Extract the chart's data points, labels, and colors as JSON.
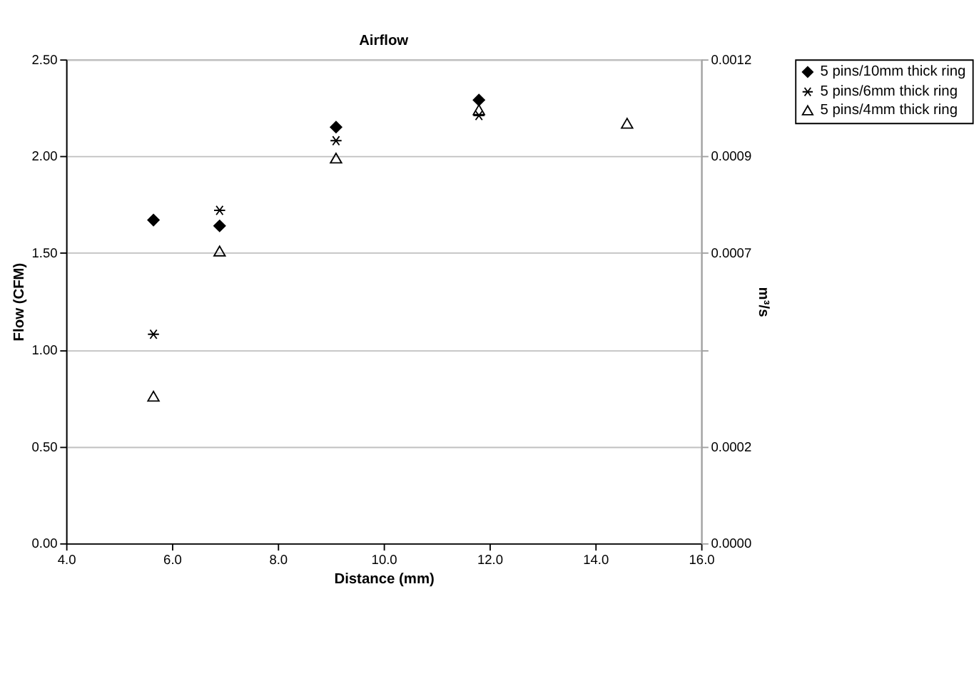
{
  "chart_data": {
    "type": "scatter",
    "title": "Airflow",
    "xlabel": "Distance (mm)",
    "ylabel": "Flow (CFM)",
    "y2label": "m³/s",
    "xlim": [
      4,
      16
    ],
    "xticks": [
      {
        "value": 4,
        "label": "4.0"
      },
      {
        "value": 6,
        "label": "6.0"
      },
      {
        "value": 8,
        "label": "8.0"
      },
      {
        "value": 10,
        "label": "10.0"
      },
      {
        "value": 12,
        "label": "12.0"
      },
      {
        "value": 14,
        "label": "14.0"
      },
      {
        "value": 16,
        "label": "16.0"
      }
    ],
    "ylim": [
      0,
      2.5
    ],
    "yticks": [
      {
        "value": 0,
        "label": "0.00"
      },
      {
        "value": 0.5,
        "label": "0.50"
      },
      {
        "value": 1,
        "label": "1.00"
      },
      {
        "value": 1.5,
        "label": "1.50"
      },
      {
        "value": 2,
        "label": "2.00"
      },
      {
        "value": 2.5,
        "label": "2.50"
      }
    ],
    "y2lim": [
      0,
      0.00118
    ],
    "y2ticks": [
      {
        "value": 0,
        "label": "0.0000"
      },
      {
        "value": 0.000236,
        "label": "0.0002"
      },
      {
        "value": 0.000472,
        "label": null
      },
      {
        "value": 0.000708,
        "label": "0.0007"
      },
      {
        "value": 0.000944,
        "label": "0.0009"
      },
      {
        "value": 0.00118,
        "label": "0.0012"
      }
    ],
    "grid": "y",
    "legend": "right",
    "series": [
      {
        "name": "5 pins/10mm thick ring",
        "color": "#000000",
        "marker": "diamond",
        "x": [
          5.65,
          6.9,
          9.1,
          11.8
        ],
        "values": [
          1.67,
          1.64,
          2.15,
          2.29
        ]
      },
      {
        "name": "5 pins/6mm thick ring",
        "color": "#000000",
        "marker": "cross",
        "x": [
          5.65,
          6.9,
          9.1,
          11.8
        ],
        "values": [
          1.08,
          1.72,
          2.08,
          2.21
        ]
      },
      {
        "name": "5 pins/4mm thick ring",
        "color": "#000000",
        "marker": "triangle",
        "x": [
          5.65,
          6.9,
          9.1,
          11.8,
          14.6
        ],
        "values": [
          0.76,
          1.51,
          1.99,
          2.24,
          2.17
        ]
      }
    ]
  }
}
